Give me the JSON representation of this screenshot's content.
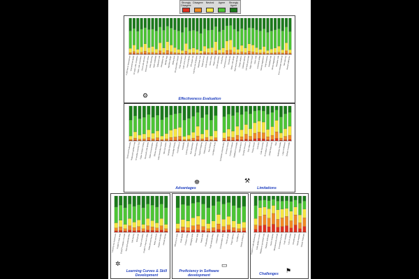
{
  "legend": {
    "items": [
      {
        "label": "Strongly Disagree",
        "color": "#e0301e"
      },
      {
        "label": "Disagree",
        "color": "#f08a24"
      },
      {
        "label": "Neutral",
        "color": "#f5e642"
      },
      {
        "label": "Agree",
        "color": "#4cc534"
      },
      {
        "label": "Strongly Agree",
        "color": "#1a7a1a"
      }
    ]
  },
  "panels": {
    "effectiveness": {
      "title": "Effectiveness Evaluation",
      "icon": "gears-icon"
    },
    "advantages": {
      "title": "Advantages",
      "icon": "globe-hand-icon"
    },
    "limitations": {
      "title": "Limitations",
      "icon": "cracked-code-icon"
    },
    "learning": {
      "title": "Learning Curves & Skill Development",
      "icon": "network-icon"
    },
    "proficiency": {
      "title": "Proficiency in Software development",
      "icon": "monitor-icon"
    },
    "challenges": {
      "title": "Challenges",
      "icon": "signs-icon"
    }
  },
  "chart_data": [
    {
      "type": "bar",
      "stacked": true,
      "title": "Effectiveness Evaluation",
      "categories": [
        "Code fixes in development",
        "Improved test quality",
        "Accurate code completion",
        "Helps code conventions",
        "Good code structure",
        "Improved code review",
        "Code refactoring",
        "Helps readability",
        "Optimized code",
        "Debugging help",
        "Identify bugs",
        "Algorithm design",
        "Writing tests",
        "Documentation support",
        "Code explanation",
        "Logic errors found",
        "Fast prototyping",
        "API usage help",
        "Learning new languages",
        "Boilerplate code",
        "Reduced errors",
        "Code translation",
        "Query writing",
        "Regex writing",
        "Script automation",
        "Config files",
        "Performance tips",
        "Security tips",
        "Better code design",
        "Improved productivity",
        "Design patterns",
        "Database queries",
        "Unit tests generated",
        "Edge cases found",
        "Clean code",
        "Comments added",
        "Naming suggestions",
        "Code examples",
        "Simplified code",
        "Library suggestions",
        "Reusable code",
        "Error messages explained",
        "Task planning",
        "Overall satisfaction"
      ],
      "series": [
        {
          "name": "Strongly Disagree",
          "values": [
            1,
            2,
            1,
            1,
            2,
            1,
            1,
            1,
            2,
            1,
            2,
            1,
            1,
            1,
            1,
            2,
            1,
            1,
            1,
            1,
            2,
            1,
            1,
            2,
            1,
            1,
            2,
            2,
            1,
            1,
            1,
            1,
            2,
            1,
            1,
            1,
            1,
            1,
            1,
            1,
            1,
            1,
            2,
            1
          ]
        },
        {
          "name": "Disagree",
          "values": [
            4,
            6,
            3,
            5,
            7,
            4,
            5,
            3,
            8,
            4,
            9,
            6,
            4,
            3,
            2,
            7,
            3,
            4,
            3,
            2,
            5,
            4,
            4,
            8,
            3,
            4,
            9,
            10,
            5,
            3,
            6,
            4,
            7,
            6,
            4,
            3,
            5,
            2,
            3,
            4,
            5,
            3,
            8,
            3
          ]
        },
        {
          "name": "Neutral",
          "values": [
            12,
            18,
            10,
            15,
            20,
            14,
            16,
            11,
            22,
            13,
            24,
            19,
            14,
            10,
            8,
            21,
            11,
            13,
            10,
            7,
            16,
            12,
            14,
            25,
            9,
            13,
            26,
            28,
            15,
            10,
            18,
            13,
            20,
            19,
            14,
            10,
            16,
            8,
            11,
            13,
            17,
            9,
            22,
            9
          ]
        },
        {
          "name": "Agree",
          "values": [
            48,
            46,
            50,
            49,
            45,
            50,
            48,
            50,
            44,
            49,
            43,
            47,
            49,
            51,
            50,
            45,
            50,
            49,
            50,
            48,
            48,
            50,
            49,
            42,
            50,
            50,
            42,
            40,
            49,
            50,
            47,
            50,
            45,
            47,
            49,
            51,
            49,
            50,
            50,
            50,
            48,
            52,
            44,
            50
          ]
        },
        {
          "name": "Strongly Agree",
          "values": [
            35,
            28,
            36,
            30,
            26,
            31,
            30,
            35,
            24,
            33,
            22,
            27,
            32,
            35,
            39,
            25,
            35,
            33,
            36,
            42,
            29,
            33,
            32,
            23,
            37,
            32,
            21,
            20,
            30,
            36,
            28,
            32,
            26,
            27,
            32,
            35,
            29,
            39,
            35,
            32,
            29,
            35,
            24,
            37
          ]
        }
      ]
    },
    {
      "type": "bar",
      "stacked": true,
      "title": "Advantages",
      "categories": [
        "Enhanced Productivity",
        "Reduced Cognitive Load",
        "Accessible Learning Tool",
        "Faster Problem Solving",
        "Improved Code Quality",
        "Better Documentation",
        "Efficient Debugging",
        "Code Generation Speed",
        "Idea Generation",
        "Language Support",
        "Knowledge Sharing",
        "Cost Efficiency",
        "Availability",
        "Learning Support",
        "Task Automation",
        "Team Collaboration",
        "Rapid Prototyping",
        "Reduced Errors",
        "Time Savings",
        "Confidence Boost"
      ],
      "series": [
        {
          "name": "Strongly Disagree",
          "values": [
            1,
            2,
            1,
            1,
            2,
            1,
            2,
            1,
            1,
            2,
            2,
            3,
            1,
            1,
            2,
            3,
            1,
            2,
            1,
            2
          ]
        },
        {
          "name": "Disagree",
          "values": [
            3,
            6,
            4,
            5,
            8,
            5,
            7,
            3,
            5,
            8,
            9,
            10,
            3,
            4,
            6,
            11,
            5,
            8,
            3,
            7
          ]
        },
        {
          "name": "Neutral",
          "values": [
            10,
            18,
            12,
            14,
            22,
            16,
            20,
            10,
            15,
            21,
            24,
            26,
            9,
            12,
            17,
            28,
            14,
            22,
            10,
            20
          ]
        },
        {
          "name": "Agree",
          "values": [
            46,
            46,
            47,
            48,
            44,
            46,
            45,
            47,
            47,
            44,
            43,
            41,
            47,
            48,
            46,
            40,
            47,
            44,
            46,
            44
          ]
        },
        {
          "name": "Strongly Agree",
          "values": [
            40,
            28,
            36,
            32,
            24,
            32,
            26,
            39,
            32,
            25,
            22,
            20,
            40,
            35,
            29,
            18,
            33,
            24,
            40,
            27
          ]
        }
      ]
    },
    {
      "type": "bar",
      "stacked": true,
      "title": "Limitations",
      "categories": [
        "Contextual Understanding",
        "Accuracy Issues",
        "Complex Problems",
        "Outdated Knowledge",
        "Hallucinations",
        "Security Concerns",
        "Over-reliance",
        "Privacy Issues",
        "Licensing",
        "Code Ownership",
        "Inconsistent Output",
        "Limited Reasoning",
        "Bias",
        "Verification Needed",
        "Large Codebases",
        "Domain Knowledge"
      ],
      "series": [
        {
          "name": "Strongly Disagree",
          "values": [
            2,
            3,
            2,
            4,
            3,
            5,
            3,
            6,
            7,
            6,
            3,
            4,
            7,
            2,
            3,
            4
          ]
        },
        {
          "name": "Disagree",
          "values": [
            6,
            9,
            8,
            12,
            9,
            14,
            10,
            16,
            18,
            17,
            9,
            12,
            19,
            6,
            10,
            12
          ]
        },
        {
          "name": "Neutral",
          "values": [
            16,
            22,
            18,
            26,
            20,
            28,
            22,
            30,
            32,
            31,
            21,
            25,
            33,
            15,
            22,
            26
          ]
        },
        {
          "name": "Agree",
          "values": [
            46,
            43,
            45,
            40,
            44,
            38,
            43,
            34,
            31,
            32,
            44,
            41,
            30,
            46,
            43,
            40
          ]
        },
        {
          "name": "Strongly Agree",
          "values": [
            30,
            23,
            27,
            18,
            24,
            15,
            22,
            14,
            12,
            14,
            23,
            18,
            11,
            31,
            22,
            18
          ]
        }
      ]
    },
    {
      "type": "bar",
      "stacked": true,
      "title": "Learning Curves & Skill Development",
      "categories": [
        "Learning new frameworks",
        "ChatGPT helps skills",
        "ChatGPT explains concepts",
        "Improved understanding",
        "Self learning",
        "Skill growth",
        "Faster onboarding",
        "ChatGPT improved coding",
        "Reduced learning time",
        "Better practices",
        "Deeper knowledge",
        "Overall learning"
      ],
      "series": [
        {
          "name": "Strongly Disagree",
          "values": [
            4,
            5,
            3,
            6,
            4,
            5,
            3,
            6,
            5,
            4,
            6,
            3
          ]
        },
        {
          "name": "Disagree",
          "values": [
            8,
            10,
            7,
            12,
            9,
            11,
            7,
            12,
            10,
            8,
            12,
            7
          ]
        },
        {
          "name": "Neutral",
          "values": [
            14,
            18,
            12,
            20,
            15,
            18,
            12,
            20,
            17,
            14,
            20,
            12
          ]
        },
        {
          "name": "Agree",
          "values": [
            44,
            42,
            46,
            40,
            44,
            42,
            46,
            40,
            43,
            44,
            40,
            46
          ]
        },
        {
          "name": "Strongly Agree",
          "values": [
            30,
            25,
            32,
            22,
            28,
            24,
            32,
            22,
            25,
            30,
            22,
            32
          ]
        }
      ]
    },
    {
      "type": "bar",
      "stacked": true,
      "title": "Proficiency in Software development",
      "categories": [
        "Efficiency in tasks",
        "Code quality",
        "Problem solving",
        "Debugging skills",
        "Design skills",
        "Testing skills",
        "Productivity gains",
        "Code understanding",
        "Collaboration",
        "Documentation skills",
        "Career growth",
        "Project delivery",
        "Confidence",
        "Overall proficiency"
      ],
      "series": [
        {
          "name": "Strongly Disagree",
          "values": [
            3,
            5,
            4,
            6,
            7,
            5,
            3,
            4,
            8,
            5,
            7,
            4,
            3,
            4
          ]
        },
        {
          "name": "Disagree",
          "values": [
            7,
            10,
            9,
            12,
            14,
            11,
            7,
            9,
            15,
            11,
            13,
            9,
            7,
            8
          ]
        },
        {
          "name": "Neutral",
          "values": [
            14,
            20,
            18,
            22,
            24,
            20,
            14,
            18,
            26,
            20,
            24,
            18,
            14,
            16
          ]
        },
        {
          "name": "Agree",
          "values": [
            44,
            42,
            43,
            40,
            38,
            42,
            44,
            43,
            36,
            42,
            38,
            43,
            44,
            44
          ]
        },
        {
          "name": "Strongly Agree",
          "values": [
            32,
            23,
            26,
            20,
            17,
            22,
            32,
            26,
            15,
            22,
            18,
            26,
            32,
            28
          ]
        }
      ]
    },
    {
      "type": "bar",
      "stacked": true,
      "title": "Challenges",
      "categories": [
        "ChatGPT code effectiveness",
        "Code quality concerns",
        "Mistakes in generated code",
        "Requires verification",
        "Hard to integrate",
        "Misunderstood prompts",
        "Inconsistent answers",
        "Code reliability",
        "Lack of context",
        "Security issues",
        "Needs expertise",
        "Overall challenges"
      ],
      "series": [
        {
          "name": "Strongly Disagree",
          "values": [
            8,
            18,
            20,
            15,
            22,
            14,
            16,
            18,
            12,
            20,
            10,
            16
          ]
        },
        {
          "name": "Disagree",
          "values": [
            12,
            26,
            28,
            24,
            30,
            22,
            24,
            26,
            20,
            28,
            16,
            24
          ]
        },
        {
          "name": "Neutral",
          "values": [
            18,
            24,
            22,
            26,
            22,
            26,
            24,
            22,
            26,
            22,
            22,
            24
          ]
        },
        {
          "name": "Agree",
          "values": [
            36,
            20,
            19,
            22,
            17,
            24,
            22,
            21,
            27,
            19,
            32,
            22
          ]
        },
        {
          "name": "Strongly Agree",
          "values": [
            26,
            12,
            11,
            13,
            9,
            14,
            14,
            13,
            15,
            11,
            20,
            14
          ]
        }
      ]
    }
  ]
}
